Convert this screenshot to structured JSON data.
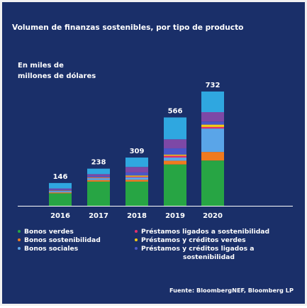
{
  "title": "Volumen de finanzas sostenibles, por tipo de producto",
  "unit_line1": "En miles de",
  "unit_line2": "millones de dólares",
  "source": "Fuente: BloombergNEF, Bloomberg LP",
  "colors": {
    "background": "#1a2f69",
    "bonos_verdes": "#27a544",
    "bonos_sostenibilidad": "#f07a1e",
    "bonos_sociales": "#5aa5e8",
    "prestamos_sostenibilidad": "#e0306c",
    "prestamos_verdes": "#f5cb14",
    "prestamos_ligados": "#4a56c8",
    "extra_segment": "#7d48a6",
    "extra_segment_2": "#2fa7e0"
  },
  "chart_data": {
    "type": "bar",
    "stacked": true,
    "categories": [
      "2016",
      "2017",
      "2018",
      "2019",
      "2020"
    ],
    "totals": [
      146,
      238,
      309,
      566,
      732
    ],
    "series": [
      {
        "name": "Bonos verdes",
        "color": "#27a544",
        "values": [
          80,
          155,
          155,
          265,
          290
        ]
      },
      {
        "name": "Bonos sostenibilidad",
        "color": "#f07a1e",
        "values": [
          6,
          10,
          12,
          24,
          55
        ]
      },
      {
        "name": "Bonos sociales",
        "color": "#5aa5e8",
        "values": [
          9,
          12,
          15,
          20,
          150
        ]
      },
      {
        "name": "Préstamos ligados a sostenibilidad",
        "color": "#e0306c",
        "values": [
          2,
          3,
          5,
          12,
          10
        ]
      },
      {
        "name": "Préstamos y créditos verdes",
        "color": "#f5cb14",
        "values": [
          2,
          3,
          7,
          7,
          15
        ]
      },
      {
        "name": "Préstamos y créditos ligados a sostenibilidad",
        "color": "#4a56c8",
        "values": [
          5,
          8,
          20,
          40,
          20
        ]
      },
      {
        "color": "#7d48a6",
        "values": [
          7,
          12,
          35,
          58,
          60
        ]
      },
      {
        "color": "#2fa7e0",
        "values": [
          35,
          35,
          60,
          140,
          132
        ]
      }
    ],
    "ylim": [
      0,
      800
    ],
    "grid": false,
    "legend_placement": "bottom"
  },
  "legend": {
    "left": [
      "Bonos verdes",
      "Bonos sostenibilidad",
      "Bonos sociales"
    ],
    "right": [
      "Préstamos ligados a sostenibilidad",
      "Préstamos y créditos verdes",
      "Préstamos y créditos ligados a"
    ],
    "right_cont": "sostenibilidad"
  }
}
